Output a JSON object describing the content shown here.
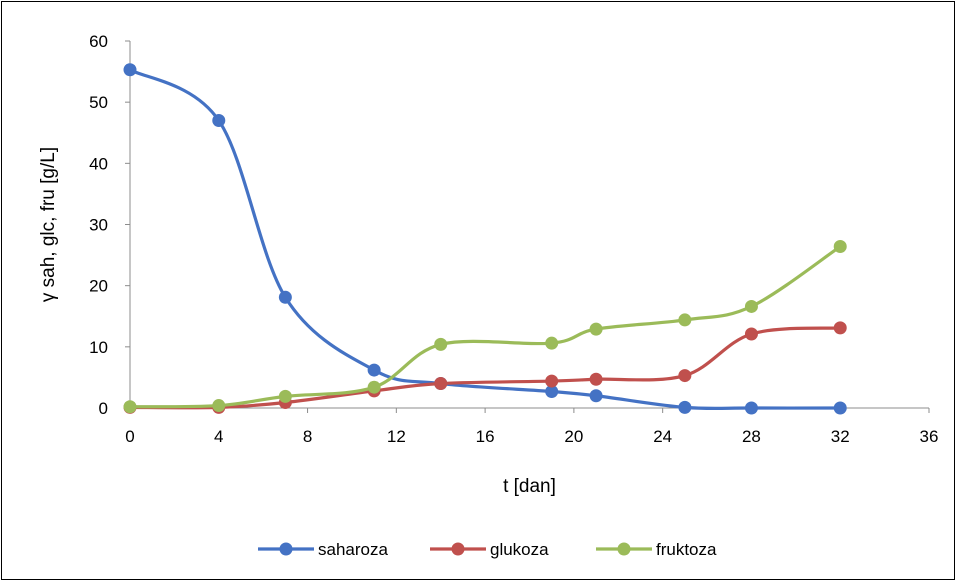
{
  "chart_data": {
    "type": "line",
    "smooth": true,
    "title": "",
    "xlabel": "t [dan]",
    "ylabel": "γ sah, glc, fru [g/L]",
    "xlim": [
      0,
      36
    ],
    "ylim": [
      0,
      60
    ],
    "xticks": [
      0,
      4,
      8,
      12,
      16,
      20,
      24,
      28,
      32,
      36
    ],
    "yticks": [
      0,
      10,
      20,
      30,
      40,
      50,
      60
    ],
    "grid": false,
    "legend_position": "bottom",
    "series": [
      {
        "name": "saharoza",
        "color": "#4472C4",
        "points": [
          [
            0,
            55.3
          ],
          [
            4,
            47.0
          ],
          [
            7,
            18.1
          ],
          [
            11,
            6.2
          ],
          [
            14,
            4.0
          ],
          [
            19,
            2.7
          ],
          [
            21,
            2.0
          ],
          [
            25,
            0.1
          ],
          [
            28,
            0.0
          ],
          [
            32,
            0.0
          ]
        ]
      },
      {
        "name": "glukoza",
        "color": "#C0504D",
        "points": [
          [
            0,
            0.1
          ],
          [
            4,
            0.1
          ],
          [
            7,
            0.9
          ],
          [
            11,
            2.8
          ],
          [
            14,
            4.0
          ],
          [
            19,
            4.4
          ],
          [
            21,
            4.7
          ],
          [
            25,
            5.3
          ],
          [
            28,
            12.1
          ],
          [
            32,
            13.1
          ]
        ]
      },
      {
        "name": "fruktoza",
        "color": "#9BBB59",
        "points": [
          [
            0,
            0.2
          ],
          [
            4,
            0.4
          ],
          [
            7,
            1.9
          ],
          [
            11,
            3.4
          ],
          [
            14,
            10.4
          ],
          [
            19,
            10.6
          ],
          [
            21,
            12.9
          ],
          [
            25,
            14.4
          ],
          [
            28,
            16.6
          ],
          [
            32,
            26.4
          ]
        ]
      }
    ]
  }
}
